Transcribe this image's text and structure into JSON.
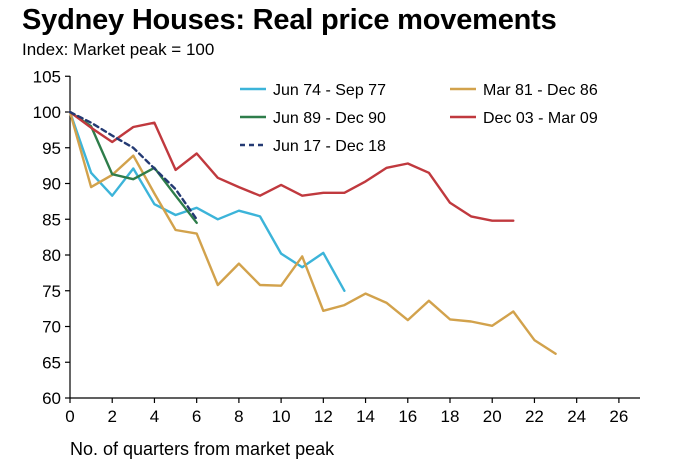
{
  "chart_data": {
    "type": "line",
    "title": "Sydney Houses: Real price movements",
    "subtitle": "Index: Market peak = 100",
    "xlabel": "No. of quarters from market peak",
    "ylabel": "",
    "xlim": [
      0,
      27
    ],
    "ylim": [
      60,
      105
    ],
    "xticks": [
      0,
      2,
      4,
      6,
      8,
      10,
      12,
      14,
      16,
      18,
      20,
      22,
      24,
      26
    ],
    "yticks": [
      60,
      65,
      70,
      75,
      80,
      85,
      90,
      95,
      100,
      105
    ],
    "grid": false,
    "series": [
      {
        "name": "Jun 74 - Sep 77",
        "color": "#3cb4d9",
        "dash": false,
        "x": [
          0,
          1,
          2,
          3,
          4,
          5,
          6,
          7,
          8,
          9,
          10,
          11,
          12,
          13
        ],
        "values": [
          100,
          91.5,
          88.3,
          92.1,
          87.1,
          85.6,
          86.6,
          85.0,
          86.2,
          85.4,
          80.2,
          78.3,
          80.3,
          75.0
        ]
      },
      {
        "name": "Mar 81 - Dec 86",
        "color": "#d2a24c",
        "dash": false,
        "x": [
          0,
          1,
          2,
          3,
          4,
          5,
          6,
          7,
          8,
          9,
          10,
          11,
          12,
          13,
          14,
          15,
          16,
          17,
          18,
          19,
          20,
          21,
          22,
          23
        ],
        "values": [
          100,
          89.5,
          91.2,
          93.9,
          88.6,
          83.5,
          83.0,
          75.8,
          78.8,
          75.8,
          75.7,
          79.8,
          72.2,
          73.0,
          74.6,
          73.3,
          70.9,
          73.6,
          71.0,
          70.7,
          70.1,
          72.1,
          68.1,
          66.2
        ]
      },
      {
        "name": "Jun 89 - Dec 90",
        "color": "#2e7d4a",
        "dash": false,
        "x": [
          0,
          1,
          2,
          3,
          4,
          5,
          6
        ],
        "values": [
          100,
          98.0,
          91.3,
          90.6,
          92.2,
          88.3,
          84.5
        ]
      },
      {
        "name": "Dec 03 - Mar 09",
        "color": "#c0393e",
        "dash": false,
        "x": [
          0,
          1,
          2,
          3,
          4,
          5,
          6,
          7,
          8,
          9,
          10,
          11,
          12,
          13,
          14,
          15,
          16,
          17,
          18,
          19,
          20,
          21
        ],
        "values": [
          100,
          97.8,
          95.8,
          97.9,
          98.5,
          91.9,
          94.2,
          90.8,
          89.5,
          88.3,
          89.8,
          88.3,
          88.7,
          88.7,
          90.3,
          92.2,
          92.8,
          91.5,
          87.3,
          85.4,
          84.8,
          84.8
        ]
      },
      {
        "name": "Jun 17 - Dec 18",
        "color": "#243a73",
        "dash": true,
        "x": [
          0,
          1,
          2,
          3,
          4,
          5,
          6
        ],
        "values": [
          100,
          98.5,
          96.7,
          95.0,
          92.1,
          89.2,
          85.0
        ]
      }
    ]
  }
}
